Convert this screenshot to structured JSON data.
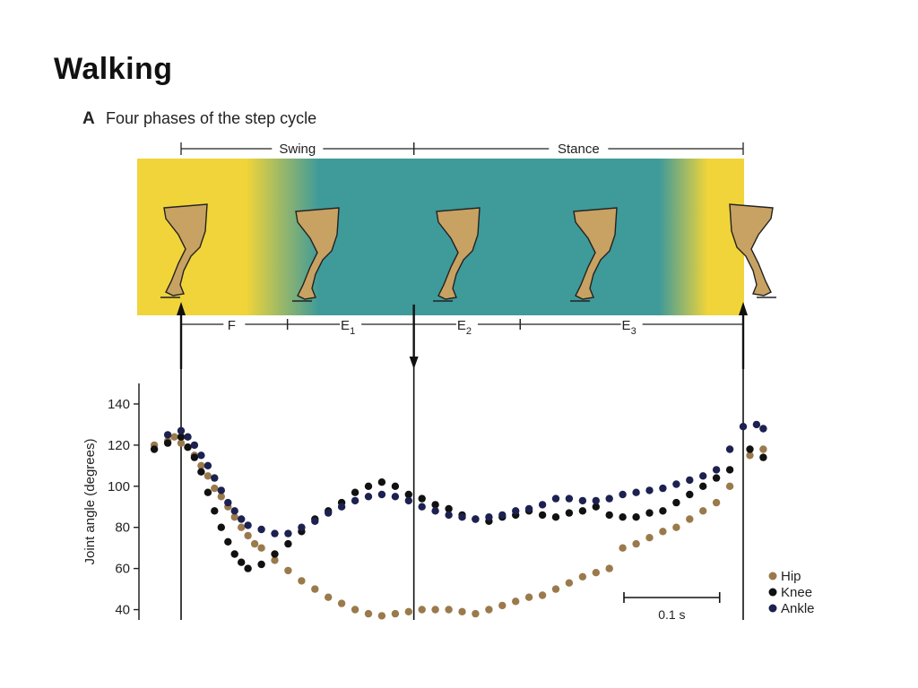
{
  "page": {
    "title": "Walking"
  },
  "colors": {
    "hip": "#9a7a4c",
    "knee": "#111111",
    "ankle": "#1c2150",
    "swing_band": "#f0d43a",
    "stance_band": "#3f9a9a",
    "leg": "#c8a262"
  },
  "figure": {
    "panel_label": "A",
    "panel_title": "Four phases of the step cycle",
    "phases": [
      {
        "name": "Swing",
        "from": 0.0,
        "to": 0.405
      },
      {
        "name": "Stance",
        "from": 0.405,
        "to": 0.978
      }
    ],
    "subphases": [
      {
        "name": "F",
        "sub": "",
        "from": 0.0,
        "to": 0.185
      },
      {
        "name": "E",
        "sub": "1",
        "from": 0.185,
        "to": 0.405
      },
      {
        "name": "E",
        "sub": "2",
        "from": 0.405,
        "to": 0.59
      },
      {
        "name": "E",
        "sub": "3",
        "from": 0.59,
        "to": 0.978
      }
    ],
    "markers": [
      {
        "t": 0.0,
        "direction": "up"
      },
      {
        "t": 0.405,
        "direction": "down"
      },
      {
        "t": 0.978,
        "direction": "up"
      }
    ],
    "scale_bar": {
      "label": "0.1 s",
      "duration": 0.1
    }
  },
  "chart_data": {
    "type": "scatter",
    "ylabel": "Joint angle (degrees)",
    "xlabel": "",
    "yticks": [
      40,
      60,
      80,
      100,
      120,
      140
    ],
    "ylim": [
      35,
      150
    ],
    "xlim": [
      -0.06,
      0.84
    ],
    "legend_position": "bottom-right",
    "series": [
      {
        "name": "Hip",
        "x": [
          -0.04,
          -0.02,
          -0.01,
          0.0,
          0.01,
          0.02,
          0.03,
          0.04,
          0.05,
          0.06,
          0.07,
          0.08,
          0.09,
          0.1,
          0.11,
          0.12,
          0.14,
          0.16,
          0.18,
          0.2,
          0.22,
          0.24,
          0.26,
          0.28,
          0.3,
          0.32,
          0.34,
          0.36,
          0.38,
          0.4,
          0.42,
          0.44,
          0.46,
          0.48,
          0.5,
          0.52,
          0.54,
          0.56,
          0.58,
          0.6,
          0.62,
          0.64,
          0.66,
          0.68,
          0.7,
          0.72,
          0.74,
          0.76,
          0.78,
          0.8,
          0.82,
          0.85,
          0.87
        ],
        "y": [
          120,
          122,
          124,
          121,
          119,
          115,
          110,
          105,
          99,
          95,
          90,
          85,
          80,
          76,
          72,
          70,
          64,
          59,
          54,
          50,
          46,
          43,
          40,
          38,
          37,
          38,
          39,
          40,
          40,
          40,
          39,
          38,
          40,
          42,
          44,
          46,
          47,
          50,
          53,
          56,
          58,
          60,
          70,
          72,
          75,
          78,
          80,
          84,
          88,
          92,
          100,
          115,
          118
        ]
      },
      {
        "name": "Knee",
        "x": [
          -0.04,
          -0.02,
          0.0,
          0.01,
          0.02,
          0.03,
          0.04,
          0.05,
          0.06,
          0.07,
          0.08,
          0.09,
          0.1,
          0.12,
          0.14,
          0.16,
          0.18,
          0.2,
          0.22,
          0.24,
          0.26,
          0.28,
          0.3,
          0.32,
          0.34,
          0.36,
          0.38,
          0.4,
          0.42,
          0.44,
          0.46,
          0.48,
          0.5,
          0.52,
          0.54,
          0.56,
          0.58,
          0.6,
          0.62,
          0.64,
          0.66,
          0.68,
          0.7,
          0.72,
          0.74,
          0.76,
          0.78,
          0.8,
          0.82,
          0.85,
          0.87
        ],
        "y": [
          118,
          121,
          124,
          119,
          114,
          107,
          97,
          88,
          80,
          73,
          67,
          63,
          60,
          62,
          67,
          72,
          78,
          84,
          88,
          92,
          97,
          100,
          102,
          100,
          96,
          94,
          91,
          89,
          86,
          84,
          83,
          85,
          86,
          88,
          86,
          85,
          87,
          88,
          90,
          86,
          85,
          85,
          87,
          88,
          92,
          96,
          100,
          104,
          108,
          118,
          114
        ]
      },
      {
        "name": "Ankle",
        "x": [
          -0.02,
          0.0,
          0.01,
          0.02,
          0.03,
          0.04,
          0.05,
          0.06,
          0.07,
          0.08,
          0.09,
          0.1,
          0.12,
          0.14,
          0.16,
          0.18,
          0.2,
          0.22,
          0.24,
          0.26,
          0.28,
          0.3,
          0.32,
          0.34,
          0.36,
          0.38,
          0.4,
          0.42,
          0.44,
          0.46,
          0.48,
          0.5,
          0.52,
          0.54,
          0.56,
          0.58,
          0.6,
          0.62,
          0.64,
          0.66,
          0.68,
          0.7,
          0.72,
          0.74,
          0.76,
          0.78,
          0.8,
          0.82,
          0.84,
          0.86,
          0.87
        ],
        "y": [
          125,
          127,
          124,
          120,
          115,
          110,
          104,
          98,
          92,
          88,
          84,
          81,
          79,
          77,
          77,
          80,
          83,
          87,
          90,
          93,
          95,
          96,
          95,
          93,
          90,
          88,
          86,
          85,
          84,
          85,
          86,
          88,
          89,
          91,
          94,
          94,
          93,
          93,
          94,
          96,
          97,
          98,
          99,
          101,
          103,
          105,
          108,
          118,
          129,
          130,
          128
        ]
      }
    ]
  }
}
